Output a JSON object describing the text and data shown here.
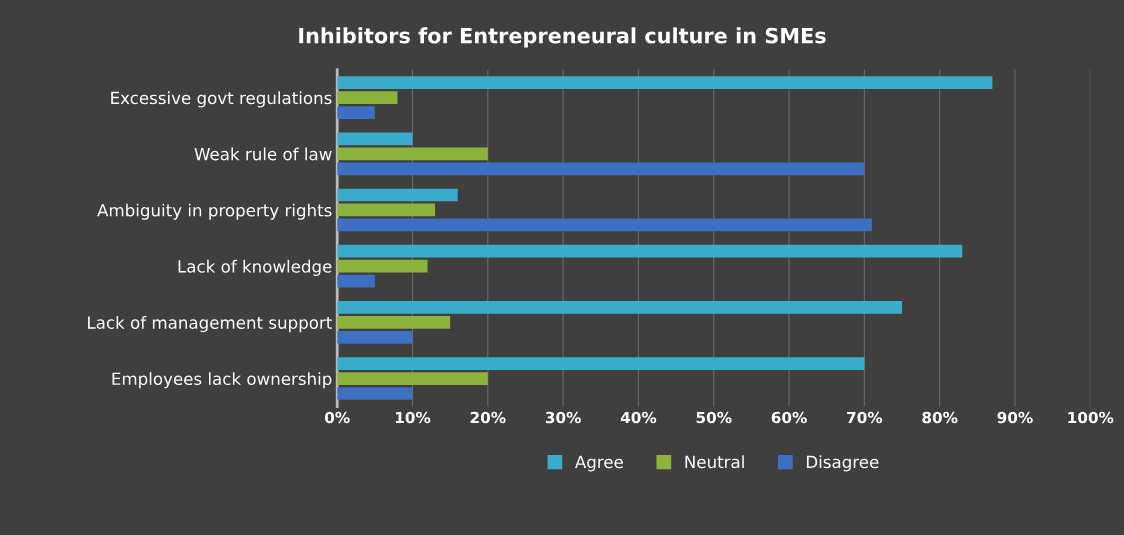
{
  "chart_data": {
    "type": "bar",
    "orientation": "horizontal",
    "title": "Inhibitors for Entrepreneural culture in SMEs",
    "categories": [
      "Excessive govt regulations",
      "Weak rule of law",
      "Ambiguity in property rights",
      "Lack of knowledge",
      "Lack of management support",
      "Employees lack ownership"
    ],
    "series": [
      {
        "name": "Agree",
        "color": "#3aaccc",
        "values": [
          87,
          10,
          16,
          83,
          75,
          70
        ]
      },
      {
        "name": "Neutral",
        "color": "#8db33c",
        "values": [
          8,
          20,
          13,
          12,
          15,
          20
        ]
      },
      {
        "name": "Disagree",
        "color": "#3d6fc2",
        "values": [
          5,
          70,
          71,
          5,
          10,
          10
        ]
      }
    ],
    "xlim": [
      0,
      100
    ],
    "xticks": [
      {
        "value": 0,
        "label": "0%"
      },
      {
        "value": 10,
        "label": "10%"
      },
      {
        "value": 20,
        "label": "20%"
      },
      {
        "value": 30,
        "label": "30%"
      },
      {
        "value": 40,
        "label": "40%"
      },
      {
        "value": 50,
        "label": "50%"
      },
      {
        "value": 60,
        "label": "60%"
      },
      {
        "value": 70,
        "label": "70%"
      },
      {
        "value": 80,
        "label": "80%"
      },
      {
        "value": 90,
        "label": "90%"
      },
      {
        "value": 100,
        "label": "100%"
      }
    ],
    "grid": "x",
    "legend": "bottom"
  }
}
